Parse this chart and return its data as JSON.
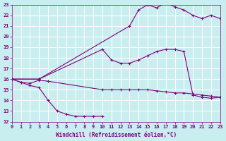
{
  "xlabel": "Windchill (Refroidissement éolien,°C)",
  "bg_color": "#c8eef0",
  "grid_color": "#ffffff",
  "line_color": "#800080",
  "xlim": [
    0,
    23
  ],
  "ylim": [
    12,
    23
  ],
  "xticks": [
    0,
    1,
    2,
    3,
    4,
    5,
    6,
    7,
    8,
    9,
    10,
    11,
    12,
    13,
    14,
    15,
    16,
    17,
    18,
    19,
    20,
    21,
    22,
    23
  ],
  "yticks": [
    12,
    13,
    14,
    15,
    16,
    17,
    18,
    19,
    20,
    21,
    22,
    23
  ],
  "line_low_x": [
    0,
    1,
    2,
    3,
    4,
    10,
    11,
    12,
    13,
    14,
    15,
    16,
    17,
    18,
    19,
    20,
    21,
    22,
    23
  ],
  "line_low_y": [
    16.0,
    15.7,
    15.6,
    15.9,
    15.8,
    15.0,
    15.0,
    15.0,
    15.0,
    15.0,
    15.0,
    14.9,
    14.8,
    14.7,
    14.7,
    14.6,
    14.5,
    14.4,
    14.3
  ],
  "curve_dip_x": [
    0,
    1,
    2,
    3,
    4,
    5,
    6,
    7,
    8,
    9,
    10
  ],
  "curve_dip_y": [
    16.0,
    15.7,
    15.4,
    15.2,
    14.0,
    13.0,
    12.7,
    12.5,
    12.5,
    12.5,
    12.5
  ],
  "line_mid_x": [
    0,
    3,
    10,
    11,
    12,
    13,
    14,
    15,
    16,
    17,
    18,
    19,
    20,
    21,
    22,
    23
  ],
  "line_mid_y": [
    16.0,
    16.0,
    18.8,
    17.8,
    17.5,
    17.5,
    17.8,
    18.2,
    18.6,
    18.8,
    18.8,
    18.6,
    14.5,
    14.3,
    14.2,
    14.3
  ],
  "line_top_x": [
    0,
    3,
    13,
    14,
    15,
    16,
    17,
    18,
    19,
    20,
    21,
    22,
    23
  ],
  "line_top_y": [
    16.0,
    16.0,
    21.0,
    22.5,
    23.0,
    22.7,
    23.2,
    22.8,
    22.5,
    22.0,
    21.7,
    22.0,
    21.7
  ]
}
